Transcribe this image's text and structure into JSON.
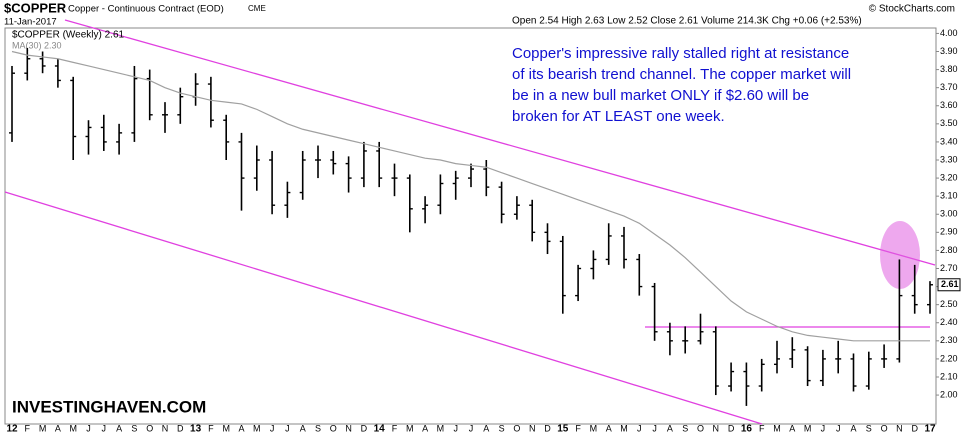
{
  "chart_data": {
    "type": "ohlc",
    "symbol": "$COPPER",
    "title": "Copper - Continuous Contract (EOD)",
    "exchange": "CME",
    "date": "11-Jan-2017",
    "quote": "Open 2.54 High 2.63 Low 2.52 Close 2.61 Volume 214.3K Chg +0.06 (+2.53%)",
    "source": "© StockCharts.com",
    "watermark": "INVESTINGHAVEN.COM",
    "annotation": [
      "Copper's impressive rally stalled right at resistance",
      "of its bearish trend channel. The copper market will",
      "be in a new bull market ONLY if $2.60 will be",
      "broken for AT LEAST one week."
    ],
    "last_price": 2.61,
    "categories": [
      "12",
      "F",
      "M",
      "A",
      "M",
      "J",
      "J",
      "A",
      "S",
      "O",
      "N",
      "D",
      "13",
      "F",
      "M",
      "A",
      "M",
      "J",
      "J",
      "A",
      "S",
      "O",
      "N",
      "D",
      "14",
      "F",
      "M",
      "A",
      "M",
      "J",
      "J",
      "A",
      "S",
      "O",
      "N",
      "D",
      "15",
      "F",
      "M",
      "A",
      "M",
      "J",
      "J",
      "A",
      "S",
      "O",
      "N",
      "D",
      "16",
      "F",
      "M",
      "A",
      "M",
      "J",
      "J",
      "A",
      "S",
      "O",
      "N",
      "D",
      "17"
    ],
    "ohlc": {
      "name": "$COPPER (Weekly) 2.61",
      "color": "#000000",
      "open": [
        3.45,
        3.78,
        3.86,
        3.82,
        3.74,
        3.43,
        3.48,
        3.4,
        3.45,
        3.75,
        3.55,
        3.55,
        3.65,
        3.72,
        3.52,
        3.4,
        3.2,
        3.3,
        3.05,
        3.12,
        3.3,
        3.3,
        3.28,
        3.2,
        3.35,
        3.2,
        3.2,
        3.03,
        3.05,
        3.17,
        3.2,
        3.25,
        3.15,
        3.0,
        3.05,
        2.9,
        2.85,
        2.55,
        2.7,
        2.75,
        2.88,
        2.75,
        2.6,
        2.35,
        2.3,
        2.3,
        2.35,
        2.05,
        2.13,
        2.05,
        2.17,
        2.2,
        2.25,
        2.08,
        2.2,
        2.2,
        2.05,
        2.2,
        2.2,
        2.55,
        2.5
      ],
      "high": [
        3.82,
        3.92,
        3.9,
        3.86,
        3.76,
        3.52,
        3.55,
        3.5,
        3.82,
        3.8,
        3.62,
        3.7,
        3.78,
        3.76,
        3.55,
        3.45,
        3.38,
        3.35,
        3.18,
        3.35,
        3.38,
        3.35,
        3.32,
        3.4,
        3.4,
        3.28,
        3.22,
        3.1,
        3.22,
        3.24,
        3.28,
        3.3,
        3.18,
        3.1,
        3.08,
        2.95,
        2.88,
        2.72,
        2.8,
        2.95,
        2.93,
        2.78,
        2.62,
        2.4,
        2.38,
        2.45,
        2.38,
        2.18,
        2.18,
        2.2,
        2.3,
        2.32,
        2.27,
        2.25,
        2.3,
        2.23,
        2.24,
        2.28,
        2.75,
        2.72,
        2.63
      ],
      "low": [
        3.4,
        3.74,
        3.78,
        3.7,
        3.3,
        3.33,
        3.35,
        3.33,
        3.4,
        3.52,
        3.45,
        3.5,
        3.6,
        3.48,
        3.3,
        3.02,
        3.13,
        3.0,
        2.98,
        3.08,
        3.2,
        3.22,
        3.12,
        3.15,
        3.15,
        3.1,
        2.9,
        2.95,
        3.0,
        3.08,
        3.15,
        3.1,
        2.95,
        2.97,
        2.85,
        2.78,
        2.45,
        2.52,
        2.64,
        2.72,
        2.7,
        2.55,
        2.3,
        2.22,
        2.23,
        2.28,
        2.0,
        2.02,
        1.94,
        2.02,
        2.12,
        2.15,
        2.05,
        2.05,
        2.12,
        2.02,
        2.03,
        2.15,
        2.18,
        2.45,
        2.45
      ],
      "close": [
        3.78,
        3.86,
        3.82,
        3.74,
        3.43,
        3.48,
        3.4,
        3.45,
        3.75,
        3.55,
        3.55,
        3.65,
        3.72,
        3.52,
        3.4,
        3.2,
        3.3,
        3.05,
        3.12,
        3.3,
        3.3,
        3.28,
        3.2,
        3.35,
        3.2,
        3.2,
        3.03,
        3.05,
        3.17,
        3.2,
        3.25,
        3.15,
        3.0,
        3.05,
        2.9,
        2.85,
        2.55,
        2.7,
        2.75,
        2.88,
        2.75,
        2.6,
        2.35,
        2.3,
        2.3,
        2.35,
        2.05,
        2.13,
        2.05,
        2.17,
        2.2,
        2.25,
        2.08,
        2.2,
        2.2,
        2.05,
        2.2,
        2.2,
        2.55,
        2.5,
        2.61
      ]
    },
    "ma": {
      "name": "MA(30) 2.30",
      "color": "#a0a0a0",
      "values": [
        3.9,
        3.88,
        3.87,
        3.86,
        3.84,
        3.82,
        3.8,
        3.78,
        3.76,
        3.74,
        3.7,
        3.67,
        3.65,
        3.63,
        3.62,
        3.61,
        3.58,
        3.54,
        3.5,
        3.47,
        3.45,
        3.43,
        3.41,
        3.39,
        3.37,
        3.35,
        3.33,
        3.31,
        3.3,
        3.28,
        3.27,
        3.26,
        3.23,
        3.2,
        3.17,
        3.14,
        3.11,
        3.08,
        3.05,
        3.02,
        2.99,
        2.95,
        2.89,
        2.83,
        2.76,
        2.68,
        2.6,
        2.52,
        2.46,
        2.42,
        2.38,
        2.35,
        2.33,
        2.32,
        2.31,
        2.3,
        2.3,
        2.3,
        2.3,
        2.3,
        2.3
      ]
    },
    "ylim": [
      1.84,
      4.03
    ],
    "yticks": [
      {
        "value": 2.0,
        "label": "2.00"
      },
      {
        "value": 2.1,
        "label": "2.10"
      },
      {
        "value": 2.2,
        "label": "2.20"
      },
      {
        "value": 2.3,
        "label": "2.30"
      },
      {
        "value": 2.4,
        "label": "2.40"
      },
      {
        "value": 2.5,
        "label": "2.50"
      },
      {
        "value": 2.6,
        "label": "2.60"
      },
      {
        "value": 2.7,
        "label": "2.70"
      },
      {
        "value": 2.8,
        "label": "2.80"
      },
      {
        "value": 2.9,
        "label": "2.90"
      },
      {
        "value": 3.0,
        "label": "3.00"
      },
      {
        "value": 3.1,
        "label": "3.10"
      },
      {
        "value": 3.2,
        "label": "3.20"
      },
      {
        "value": 3.3,
        "label": "3.30"
      },
      {
        "value": 3.4,
        "label": "3.40"
      },
      {
        "value": 3.5,
        "label": "3.50"
      },
      {
        "value": 3.6,
        "label": "3.60"
      },
      {
        "value": 3.7,
        "label": "3.70"
      },
      {
        "value": 3.8,
        "label": "3.80"
      },
      {
        "value": 3.9,
        "label": "3.90"
      },
      {
        "value": 4.0,
        "label": "4.00"
      }
    ],
    "grid": false
  }
}
